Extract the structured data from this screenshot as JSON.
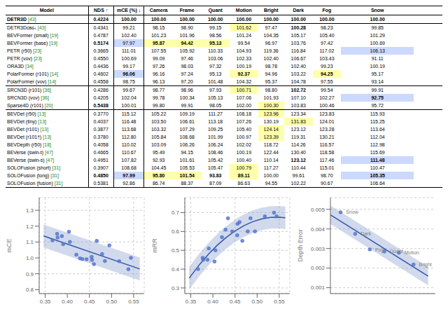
{
  "chart_data": [
    {
      "type": "table",
      "header": [
        "Model",
        "NDS ↑",
        "mCE (%) ↓",
        "Camera",
        "Frame",
        "Quant",
        "Motion",
        "Bright",
        "Dark",
        "Fog",
        "Snow"
      ],
      "groups": [
        [
          [
            "DETR3D [43]",
            "0.4224",
            "100.00",
            "100.00",
            "100.00",
            "100.00",
            "100.00",
            "100.00",
            "100.00",
            "100.00",
            "100.00"
          ]
        ],
        [
          [
            "DETR3Dᴄʙɢₛ [43]",
            "0.4341",
            "99.21",
            "98.15",
            "98.90",
            "99.15",
            "101.62",
            "97.47",
            "100.28",
            "98.23",
            "99.85"
          ],
          [
            "BEVFormer (small) [19]",
            "0.4787",
            "102.40",
            "101.23",
            "101.96",
            "98.56",
            "101.24",
            "104.35",
            "105.17",
            "105.40",
            "101.29"
          ],
          [
            "BEVFormer (base) [19]",
            "0.5174",
            "97.97",
            "95.87",
            "94.42",
            "95.13",
            "99.54",
            "96.97",
            "103.76",
            "97.42",
            "100.69"
          ],
          [
            "PETR (r50) [23]",
            "0.3665",
            "111.01",
            "107.55",
            "105.92",
            "110.33",
            "104.93",
            "119.36",
            "116.84",
            "117.02",
            "106.13"
          ],
          [
            "PETR (vov) [23]",
            "0.4550",
            "100.69",
            "99.09",
            "97.46",
            "103.06",
            "102.33",
            "102.40",
            "106.67",
            "103.43",
            "91.11"
          ],
          [
            "ORA3D [34]",
            "0.4436",
            "99.17",
            "97.26",
            "98.03",
            "97.32",
            "100.19",
            "98.78",
            "102.40",
            "99.23",
            "100.19"
          ],
          [
            "PolarFormer (r101) [14]",
            "0.4602",
            "96.06",
            "96.16",
            "97.24",
            "95.13",
            "92.37",
            "94.96",
            "103.22",
            "94.25",
            "95.17"
          ],
          [
            "PolarFormer (vov) [14]",
            "0.4558",
            "98.75",
            "96.13",
            "97.20",
            "101.48",
            "104.32",
            "95.37",
            "104.78",
            "97.55",
            "93.14"
          ]
        ],
        [
          [
            "SRCN3D (r101) [36]",
            "0.4286",
            "99.67",
            "98.77",
            "98.96",
            "97.93",
            "100.71",
            "98.80",
            "102.72",
            "99.54",
            "99.91"
          ],
          [
            "SRCN3D (vov) [36]",
            "0.4205",
            "102.04",
            "99.78",
            "100.34",
            "105.13",
            "107.06",
            "101.93",
            "107.10",
            "102.27",
            "92.75"
          ],
          [
            "Sparse4D (r101) [20]",
            "0.5438",
            "100.01",
            "99.80",
            "99.91",
            "98.05",
            "102.00",
            "100.30",
            "103.83",
            "100.46",
            "95.72"
          ]
        ],
        [
          [
            "BEVDet (r50) [13]",
            "0.3770",
            "115.12",
            "105.22",
            "109.19",
            "111.27",
            "108.18",
            "123.96",
            "123.34",
            "123.83",
            "115.93"
          ],
          [
            "BEVDet (tiny) [13]",
            "0.4037",
            "116.48",
            "103.50",
            "106.61",
            "113.18",
            "107.26",
            "130.19",
            "131.83",
            "124.01",
            "115.25"
          ],
          [
            "BEVDet (r101) [13]",
            "0.3877",
            "113.68",
            "103.32",
            "107.29",
            "109.25",
            "105.40",
            "124.14",
            "123.12",
            "123.28",
            "113.64"
          ],
          [
            "BEVDet (r101†) [13]",
            "0.3780",
            "112.80",
            "105.84",
            "108.68",
            "101.99",
            "100.97",
            "123.39",
            "119.31",
            "130.21",
            "112.04"
          ],
          [
            "BEVDepth (r50) [18]",
            "0.4058",
            "110.02",
            "103.09",
            "106.26",
            "106.24",
            "102.02",
            "118.72",
            "114.26",
            "116.57",
            "112.98"
          ],
          [
            "BEVerse (swin-t) [47]",
            "0.4665",
            "110.67",
            "95.49",
            "94.15",
            "108.46",
            "100.19",
            "122.44",
            "130.40",
            "118.58",
            "115.69"
          ],
          [
            "BEVerse (swin-s) [47]",
            "0.4951",
            "107.82",
            "92.93",
            "101.61",
            "105.42",
            "100.40",
            "110.14",
            "123.12",
            "117.46",
            "111.48"
          ],
          [
            "SOLOFusion (short) [31]",
            "0.3907",
            "108.68",
            "104.45",
            "105.53",
            "105.47",
            "100.79",
            "117.27",
            "110.44",
            "115.01",
            "110.47"
          ],
          [
            "SOLOFusion (long) [31]",
            "0.4850",
            "97.99",
            "95.80",
            "101.54",
            "93.83",
            "89.11",
            "100.00",
            "99.61",
            "98.70",
            "105.35"
          ],
          [
            "SOLOFusion (fusion) [31]",
            "0.5381",
            "92.86",
            "86.74",
            "88.37",
            "87.09",
            "86.63",
            "94.55",
            "102.22",
            "90.67",
            "106.64"
          ]
        ]
      ],
      "highlights": [
        {
          "color": "#ffffaa",
          "cells": [
            [
              2,
              6
            ],
            [
              4,
              3
            ],
            [
              4,
              4
            ],
            [
              4,
              5
            ],
            [
              8,
              6
            ],
            [
              8,
              9
            ],
            [
              10,
              6
            ],
            [
              12,
              7
            ],
            [
              20,
              6
            ],
            [
              21,
              6
            ],
            [
              21,
              3
            ],
            [
              21,
              4
            ],
            [
              13,
              7
            ],
            [
              14,
              8
            ],
            [
              15,
              7
            ],
            [
              16,
              7
            ]
          ]
        },
        {
          "color": "#ccd9ff",
          "cells": [
            [
              4,
              2
            ],
            [
              8,
              2
            ],
            [
              21,
              2
            ],
            [
              5,
              10
            ],
            [
              11,
              10
            ],
            [
              19,
              10
            ],
            [
              21,
              10
            ]
          ]
        }
      ],
      "bold_rows": [
        0,
        1
      ],
      "bold_cells": [
        [
          4,
          1
        ],
        [
          4,
          3
        ],
        [
          4,
          4
        ],
        [
          4,
          5
        ],
        [
          8,
          2
        ],
        [
          8,
          6
        ],
        [
          8,
          9
        ],
        [
          12,
          1
        ],
        [
          2,
          8
        ],
        [
          10,
          8
        ],
        [
          11,
          10
        ],
        [
          19,
          8
        ],
        [
          19,
          10
        ],
        [
          21,
          1
        ],
        [
          21,
          2
        ],
        [
          21,
          3
        ],
        [
          21,
          4
        ],
        [
          21,
          5
        ],
        [
          21,
          6
        ],
        [
          21,
          10
        ]
      ],
      "citation_color": "#228822"
    },
    {
      "type": "scatter",
      "ylabel": "mCE",
      "x": [
        0.4341,
        0.4787,
        0.5174,
        0.3665,
        0.455,
        0.4436,
        0.4602,
        0.4558,
        0.4286,
        0.4205,
        0.5438,
        0.377,
        0.4037,
        0.3877,
        0.378,
        0.4058,
        0.4665,
        0.4951,
        0.3907,
        0.485,
        0.5381
      ],
      "values": [
        0.9921,
        1.024,
        0.9797,
        1.1101,
        1.0069,
        0.9917,
        0.9606,
        0.9875,
        0.9967,
        1.0204,
        1.0001,
        1.1512,
        1.1648,
        1.1368,
        1.128,
        1.1002,
        1.1067,
        1.0782,
        1.0868,
        0.9799,
        0.9286
      ],
      "xlim": [
        0.3365,
        0.5738
      ],
      "xticks": [
        0.35,
        {
          "value": 0.4,
          "label": "0.40"
        },
        0.45,
        {
          "value": 0.5,
          "label": "0.50"
        },
        0.55
      ],
      "ylim": [
        0.775,
        1.38
      ],
      "yticks": [
        0.8,
        0.9,
        {
          "value": 1,
          "label": "1.0"
        },
        1.1,
        1.2,
        1.3
      ],
      "grid": true,
      "color": "#5577cc",
      "fit": {
        "x": [
          0.3465,
          0.5638
        ],
        "values": [
          1.137885,
          0.930179
        ],
        "lower": [
          1.065365,
          0.857659
        ],
        "upper": [
          1.210405,
          1.002699
        ],
        "color": "#3355aa",
        "band_color": "#99aad4"
      }
    },
    {
      "type": "scatter",
      "ylabel": "mRR",
      "x": [
        0.4341,
        0.4787,
        0.5174,
        0.3665,
        0.455,
        0.4436,
        0.4602,
        0.4558,
        0.4286,
        0.4205,
        0.5438,
        0.377,
        0.4037,
        0.3877,
        0.378,
        0.4058,
        0.4665,
        0.4951,
        0.3907,
        0.485,
        0.5381
      ],
      "values": [
        0.67,
        0.6,
        0.68,
        0.4,
        0.58,
        0.6,
        0.65,
        0.64,
        0.61,
        0.57,
        0.68,
        0.46,
        0.44,
        0.45,
        0.45,
        0.5,
        0.55,
        0.6,
        0.51,
        0.67,
        0.7
      ],
      "xlim": [
        0.3365,
        0.5738
      ],
      "xticks": [
        0.35,
        {
          "value": 0.4,
          "label": "0.40"
        },
        0.45,
        {
          "value": 0.5,
          "label": "0.50"
        },
        0.55
      ],
      "ylim": [
        0.27,
        0.78
      ],
      "yticks": [
        0.3,
        0.4,
        0.5,
        0.6,
        0.7
      ],
      "grid": true,
      "color": "#5577cc",
      "fit": {
        "x": [
          0.3465,
          0.37,
          0.39,
          0.41,
          0.43,
          0.45,
          0.47,
          0.49,
          0.51,
          0.53,
          0.55,
          0.5638
        ],
        "values": [
          0.3523,
          0.424846,
          0.479352,
          0.527205,
          0.568407,
          0.602957,
          0.630853,
          0.652097,
          0.666688,
          0.674628,
          0.675915,
          0.672924
        ],
        "lower": [
          0.292508,
          0.365054,
          0.41956,
          0.467413,
          0.508615,
          0.543165,
          0.571061,
          0.592305,
          0.606896,
          0.614836,
          0.616123,
          0.613132
        ],
        "upper": [
          0.412092,
          0.484638,
          0.539144,
          0.586997,
          0.628199,
          0.662749,
          0.690645,
          0.711889,
          0.72648,
          0.73442,
          0.735707,
          0.732716
        ],
        "color": "#3355aa",
        "band_color": "#99aad4"
      }
    },
    {
      "type": "scatter",
      "ylabel": "Depth Error",
      "x": [
        1,
        2,
        3,
        4,
        5,
        6
      ],
      "values": [
        0.00485,
        0.00375,
        0.00295,
        0.00285,
        0.00278,
        0.00218
      ],
      "labels": [
        "Snow",
        "Dark",
        "Fog",
        "Quant",
        "Motion",
        "Bright"
      ],
      "xlim": [
        0.3,
        7.5
      ],
      "ylim": [
        0.0007,
        0.0056
      ],
      "yticks": [
        0.001,
        0.002,
        0.003,
        0.004,
        0.005
      ],
      "tick_labels": "y",
      "grid": true,
      "color": "#5577cc",
      "fit": {
        "x": [
          0.3,
          7.0
        ],
        "values": [
          0.00472244,
          0.00159067
        ],
        "lower": [
          0.0042485,
          0.00111673
        ],
        "upper": [
          0.00519638,
          0.00206461
        ],
        "color": "#3355aa",
        "band_color": "#99aad4"
      }
    }
  ]
}
